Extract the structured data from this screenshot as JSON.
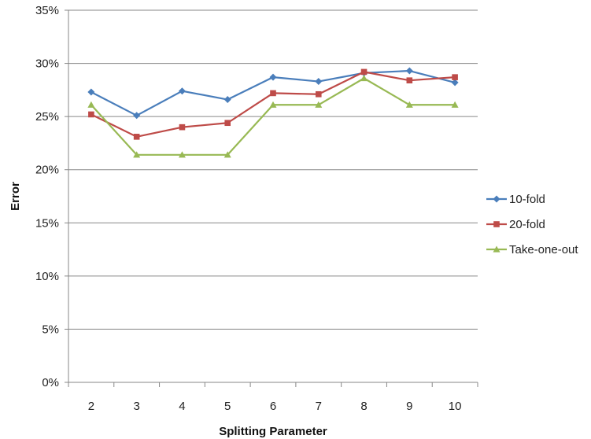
{
  "chart_data": {
    "type": "line",
    "title": "",
    "xlabel": "Splitting Parameter",
    "ylabel": "Error",
    "x": [
      2,
      3,
      4,
      5,
      6,
      7,
      8,
      9,
      10
    ],
    "y_ticks": [
      "0%",
      "5%",
      "10%",
      "15%",
      "20%",
      "25%",
      "30%",
      "35%"
    ],
    "ylim": [
      0,
      35
    ],
    "grid": true,
    "legend_position": "right",
    "series": [
      {
        "name": "10-fold",
        "color": "#4a7ebb",
        "marker": "diamond",
        "values": [
          27.3,
          25.1,
          27.4,
          26.6,
          28.7,
          28.3,
          29.1,
          29.3,
          28.2
        ]
      },
      {
        "name": "20-fold",
        "color": "#be4b48",
        "marker": "square",
        "values": [
          25.2,
          23.1,
          24.0,
          24.4,
          27.2,
          27.1,
          29.2,
          28.4,
          28.7
        ]
      },
      {
        "name": "Take-one-out",
        "color": "#98b954",
        "marker": "triangle",
        "values": [
          26.1,
          21.4,
          21.4,
          21.4,
          26.1,
          26.1,
          28.6,
          26.1,
          26.1
        ]
      }
    ]
  }
}
